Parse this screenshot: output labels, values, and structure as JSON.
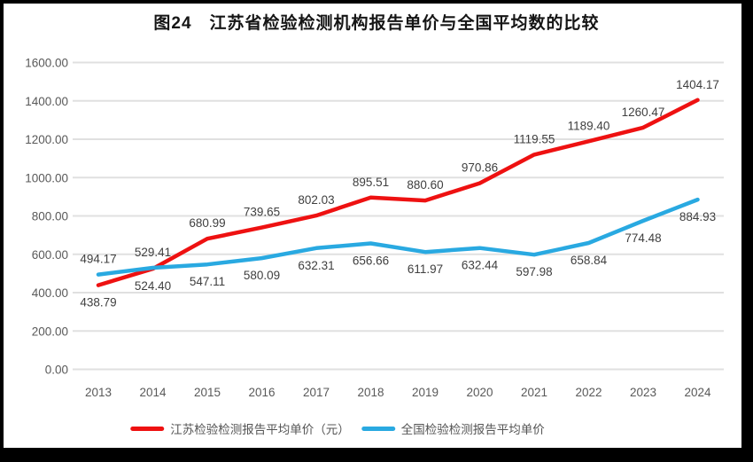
{
  "chart_data": {
    "type": "line",
    "title": "图24　江苏省检验检测机构报告单价与全国平均数的比较",
    "categories": [
      "2013",
      "2014",
      "2015",
      "2016",
      "2017",
      "2018",
      "2019",
      "2020",
      "2021",
      "2022",
      "2023",
      "2024"
    ],
    "series": [
      {
        "id": "jiangsu",
        "name": "江苏检验检测报告平均单价（元）",
        "color": "#ee1111",
        "values": [
          438.79,
          524.4,
          680.99,
          739.65,
          802.03,
          895.51,
          880.6,
          970.86,
          1119.55,
          1189.4,
          1260.47,
          1404.17
        ],
        "value_labels": [
          "438.79",
          "524.40",
          "680.99",
          "739.65",
          "802.03",
          "895.51",
          "880.60",
          "970.86",
          "1119.55",
          "1189.40",
          "1260.47",
          "1404.17"
        ],
        "label_sides": [
          "below",
          "below",
          "above",
          "above",
          "above",
          "above",
          "above",
          "above",
          "above",
          "above",
          "above",
          "above"
        ]
      },
      {
        "id": "national",
        "name": "全国检验检测报告平均单价",
        "color": "#29a9e1",
        "values": [
          494.17,
          529.41,
          547.11,
          580.09,
          632.31,
          656.66,
          611.97,
          632.44,
          597.98,
          658.84,
          774.48,
          884.93
        ],
        "value_labels": [
          "494.17",
          "529.41",
          "547.11",
          "580.09",
          "632.31",
          "656.66",
          "611.97",
          "632.44",
          "597.98",
          "658.84",
          "774.48",
          "884.93"
        ],
        "label_sides": [
          "above",
          "above",
          "below",
          "below",
          "below",
          "below",
          "below",
          "below",
          "below",
          "below",
          "below",
          "below"
        ]
      }
    ],
    "ylim": [
      0,
      1600
    ],
    "ytick_step": 200,
    "ytick_labels": [
      "0.00",
      "200.00",
      "400.00",
      "600.00",
      "800.00",
      "1000.00",
      "1200.00",
      "1400.00",
      "1600.00"
    ],
    "grid": true,
    "legend_position": "bottom"
  },
  "colors": {
    "frame": "#000000",
    "background": "#ffffff",
    "gridline": "#e0e0e0",
    "axis_text": "#595959",
    "value_label_text": "#3f3f3f",
    "title_text": "#151515"
  }
}
